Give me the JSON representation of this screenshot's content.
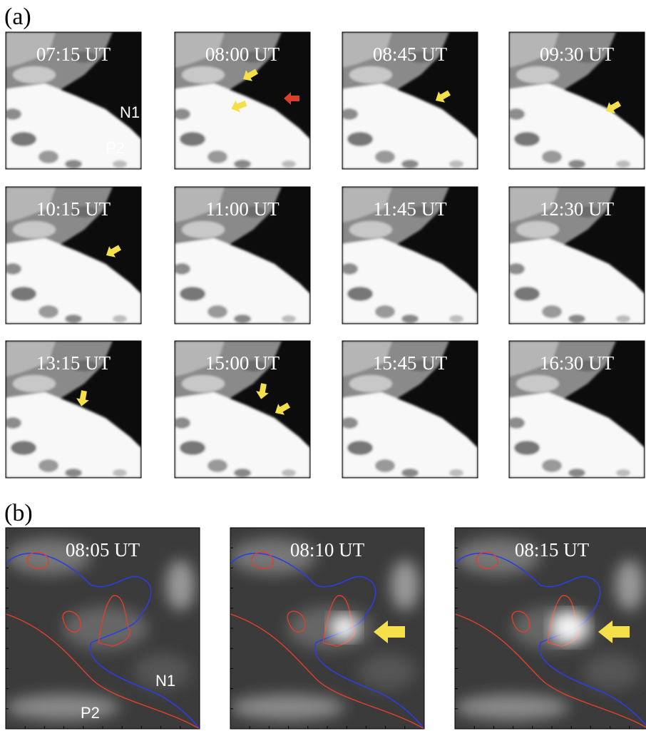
{
  "panel_a": {
    "label": "(a)",
    "frames": [
      {
        "time": "07:15 UT",
        "labels": [
          "N1",
          "P2"
        ]
      },
      {
        "time": "08:00 UT"
      },
      {
        "time": "08:45 UT"
      },
      {
        "time": "09:30 UT"
      },
      {
        "time": "10:15 UT"
      },
      {
        "time": "11:00 UT"
      },
      {
        "time": "11:45 UT"
      },
      {
        "time": "12:30 UT"
      },
      {
        "time": "13:15 UT"
      },
      {
        "time": "15:00 UT"
      },
      {
        "time": "15:45 UT"
      },
      {
        "time": "16:30 UT"
      }
    ]
  },
  "panel_b": {
    "label": "(b)",
    "frames": [
      {
        "time": "08:05 UT",
        "labels": [
          "N1",
          "P2"
        ]
      },
      {
        "time": "08:10 UT"
      },
      {
        "time": "08:15 UT"
      }
    ]
  }
}
